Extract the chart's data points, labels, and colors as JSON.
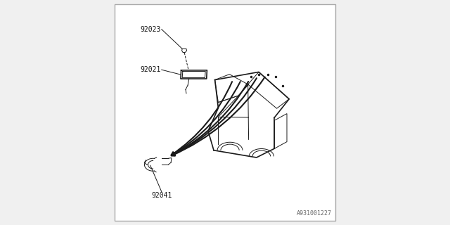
{
  "bg_color": "#f0f0f0",
  "border_color": "#aaaaaa",
  "line_color": "#1a1a1a",
  "label_color": "#111111",
  "diagram_id": "A931001227",
  "label_92023": "92023",
  "label_92021": "92021",
  "label_92041": "92041"
}
